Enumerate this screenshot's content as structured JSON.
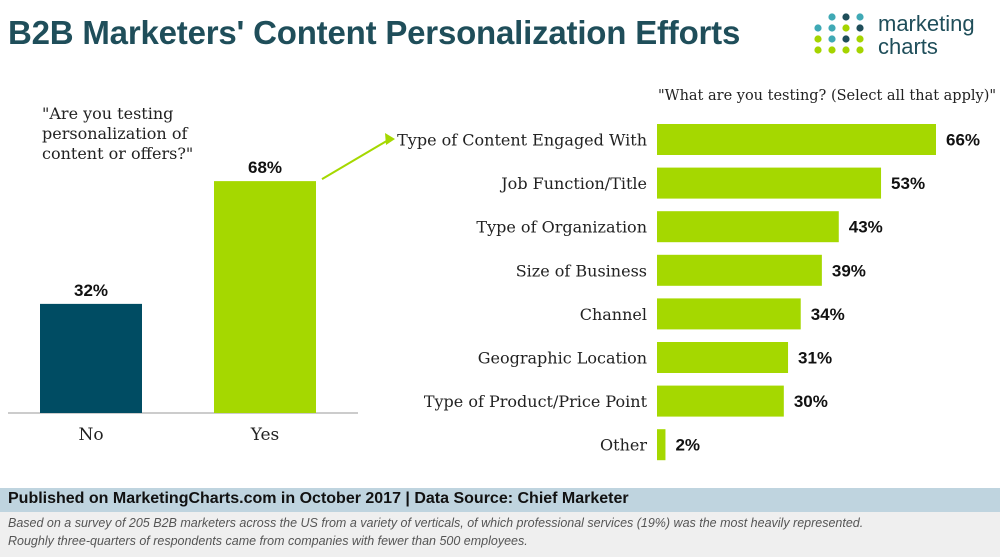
{
  "title": "B2B Marketers' Content Personalization Efforts",
  "logo": {
    "line1": "marketing",
    "line2": "charts",
    "dot_colors": [
      "#1f4e5a",
      "#3fa9b5",
      "#a5d400"
    ]
  },
  "colors": {
    "dark": "#004c63",
    "green": "#a5d800",
    "axis": "#999999"
  },
  "chart_data": [
    {
      "type": "bar",
      "question_lines": [
        "\"Are you testing",
        "personalization of",
        "content or offers?\""
      ],
      "categories": [
        "No",
        "Yes"
      ],
      "values": [
        32,
        68
      ],
      "value_labels": [
        "32%",
        "68%"
      ],
      "ylim": [
        0,
        100
      ]
    },
    {
      "type": "bar",
      "orientation": "horizontal",
      "question": "\"What are you testing? (Select all that apply)\"",
      "categories": [
        "Type of Content Engaged With",
        "Job Function/Title",
        "Type of Organization",
        "Size of Business",
        "Channel",
        "Geographic Location",
        "Type of Product/Price Point",
        "Other"
      ],
      "values": [
        66,
        53,
        43,
        39,
        34,
        31,
        30,
        2
      ],
      "value_labels": [
        "66%",
        "53%",
        "43%",
        "39%",
        "34%",
        "31%",
        "30%",
        "2%"
      ],
      "xlim": [
        0,
        66
      ]
    }
  ],
  "footer": {
    "published": "Published on MarketingCharts.com in October 2017 | Data Source: Chief Marketer",
    "note_line1": "Based on a survey of 205 B2B marketers across the US from a variety of verticals, of which professional services (19%) was the most heavily represented.",
    "note_line2": "Roughly three-quarters of respondents came from companies with fewer than 500 employees."
  }
}
